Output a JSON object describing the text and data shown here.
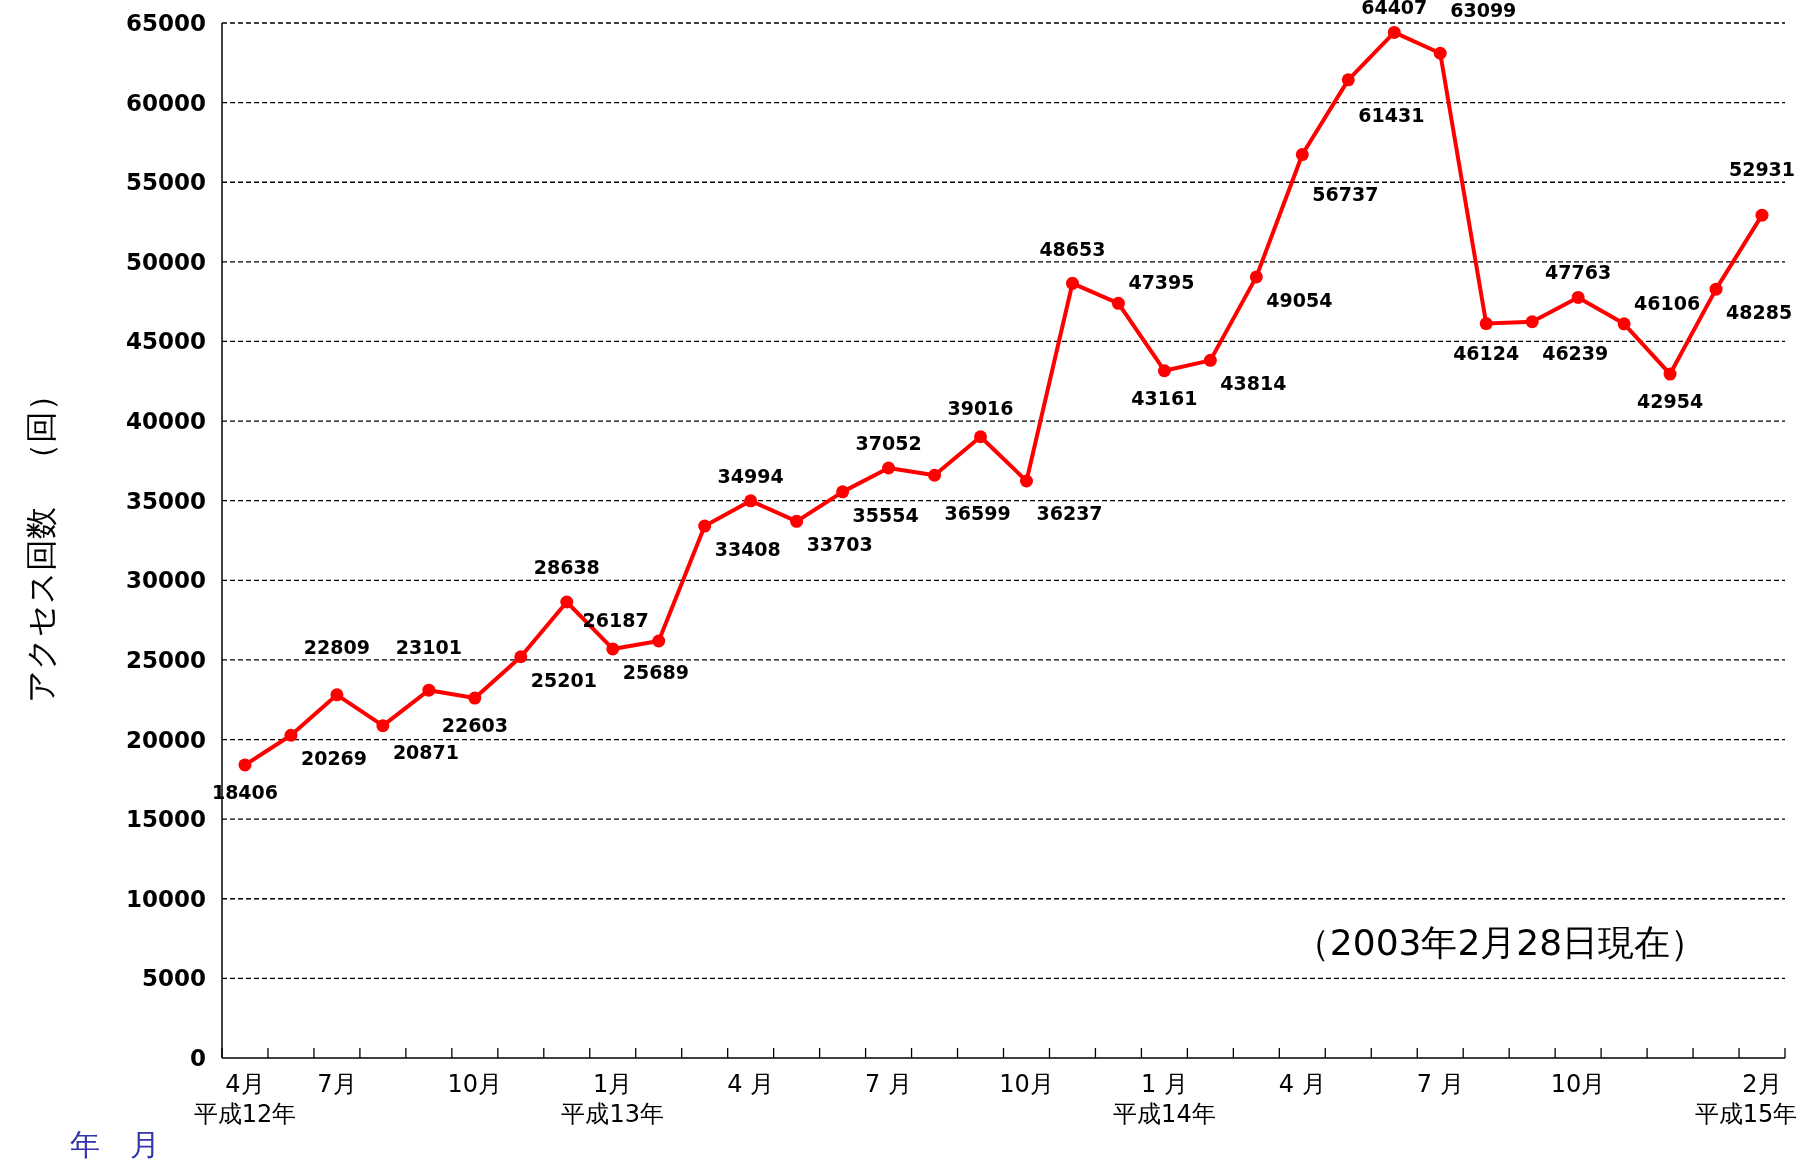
{
  "chart_data": {
    "type": "line",
    "xlabel": "年　月",
    "ylabel": "アクセス回数　（回）",
    "annotations": [
      "（2003年2月28日現在）",
      "平成12年",
      "平成13年",
      "平成14年",
      "平成15年"
    ],
    "categories": [
      "4月",
      null,
      "7月",
      null,
      null,
      "10月",
      null,
      null,
      "1月",
      null,
      null,
      "4 月",
      null,
      null,
      "7 月",
      null,
      null,
      "10月",
      null,
      null,
      "1 月",
      null,
      null,
      "4 月",
      null,
      null,
      "7 月",
      null,
      null,
      "10月",
      null,
      null,
      null,
      "2月"
    ],
    "series": [
      {
        "color": "#ff0000",
        "values": [
          18406,
          20269,
          22809,
          20871,
          23101,
          22603,
          25201,
          28638,
          25689,
          26187,
          33408,
          34994,
          33703,
          35554,
          37052,
          36599,
          39016,
          36237,
          48653,
          47395,
          43161,
          43814,
          49054,
          56737,
          61431,
          64407,
          63099,
          46124,
          46239,
          47763,
          46106,
          42954,
          48285,
          52931
        ]
      }
    ],
    "ylim": [
      0,
      65000
    ],
    "yticks": [
      0,
      5000,
      10000,
      15000,
      20000,
      25000,
      30000,
      35000,
      40000,
      45000,
      50000,
      55000,
      60000,
      65000
    ],
    "grid": "y",
    "marker": "circle",
    "line_style": "solid",
    "data_labels": true
  }
}
